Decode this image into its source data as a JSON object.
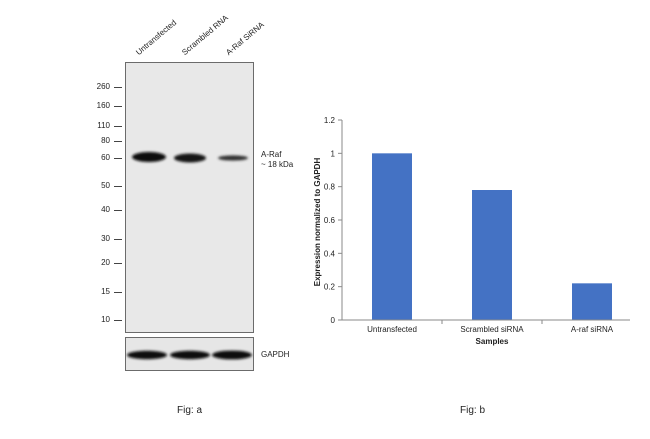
{
  "blot": {
    "lanes": [
      "Untransfected",
      "Scrambled RNA",
      "A-Raf SiRNA"
    ],
    "markers": [
      "260",
      "160",
      "110",
      "80",
      "60",
      "50",
      "40",
      "30",
      "20",
      "15",
      "10"
    ],
    "band_label_line1": "A-Raf",
    "band_label_line2": "~ 18 kDa",
    "loading_label": "GAPDH",
    "caption": "Fig: a"
  },
  "chart_data": {
    "type": "bar",
    "categories": [
      "Untransfected",
      "Scrambled siRNA",
      "A-raf siRNA"
    ],
    "values": [
      1.0,
      0.78,
      0.22
    ],
    "ylim": [
      0,
      1.2
    ],
    "yticks": [
      "0",
      "0.2",
      "0.4",
      "0.6",
      "0.8",
      "1",
      "1.2"
    ],
    "xlabel": "Samples",
    "ylabel": "Expression normalized to GAPDH",
    "bar_color": "#4472c4",
    "grid": false,
    "caption": "Fig: b"
  }
}
